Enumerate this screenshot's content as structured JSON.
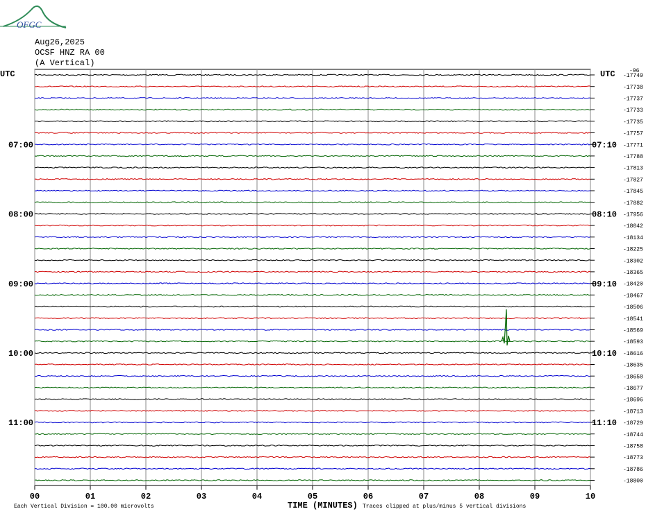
{
  "logo": "OFGC",
  "header": {
    "date": "Aug26,2025",
    "station": "OCSF HNZ RA 00",
    "component": "(A Vertical)"
  },
  "left_label": "UTC",
  "right_label": "UTC",
  "top_note": "-96",
  "trace_colors": [
    "#000000",
    "#d00000",
    "#0000d0",
    "#006400"
  ],
  "rows": [
    {
      "offset": -17749
    },
    {
      "offset": -17738
    },
    {
      "offset": -17737
    },
    {
      "offset": -17733
    },
    {
      "offset": -17735
    },
    {
      "offset": -17757
    },
    {
      "left": "07:00",
      "right": "07:10",
      "offset": -17771
    },
    {
      "offset": -17788
    },
    {
      "offset": -17813
    },
    {
      "offset": -17827
    },
    {
      "offset": -17845
    },
    {
      "offset": -17882
    },
    {
      "left": "08:00",
      "right": "08:10",
      "offset": -17956
    },
    {
      "offset": -18042
    },
    {
      "offset": -18134
    },
    {
      "offset": -18225
    },
    {
      "offset": -18302
    },
    {
      "offset": -18365
    },
    {
      "left": "09:00",
      "right": "09:10",
      "offset": -18420
    },
    {
      "offset": -18467
    },
    {
      "offset": -18506
    },
    {
      "offset": -18541
    },
    {
      "offset": -18569
    },
    {
      "offset": -18593
    },
    {
      "left": "10:00",
      "right": "10:10",
      "offset": -18616
    },
    {
      "offset": -18635
    },
    {
      "offset": -18658
    },
    {
      "offset": -18677
    },
    {
      "offset": -18696
    },
    {
      "offset": -18713
    },
    {
      "left": "11:00",
      "right": "11:10",
      "offset": -18729
    },
    {
      "offset": -18744
    },
    {
      "offset": -18758
    },
    {
      "offset": -18773
    },
    {
      "offset": -18786
    },
    {
      "offset": -18800
    }
  ],
  "x_ticks": [
    "00",
    "01",
    "02",
    "03",
    "04",
    "05",
    "06",
    "07",
    "08",
    "09",
    "10"
  ],
  "footer": {
    "scale_note": "Each Vertical Division =  100.00 microvolts",
    "x_title": "TIME (MINUTES)",
    "clip_note": "Traces clipped at plus/minus 5 vertical divisions"
  }
}
